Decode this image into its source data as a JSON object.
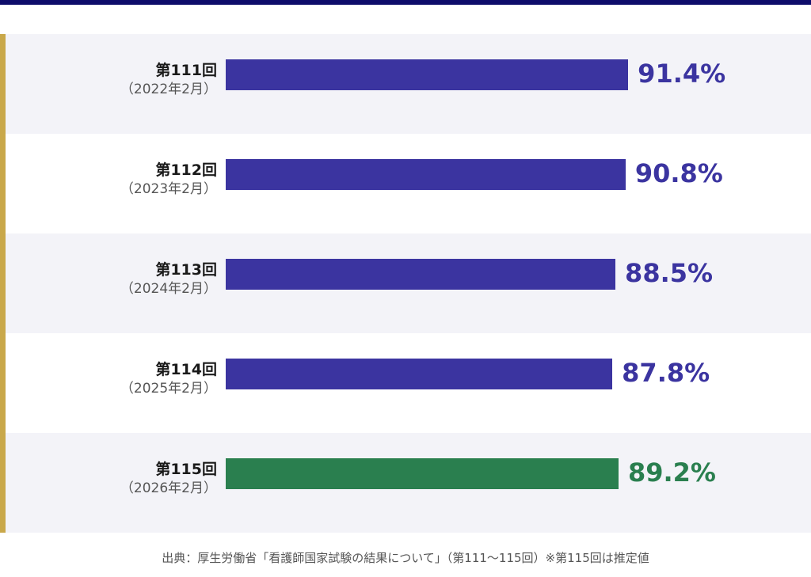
{
  "chart_data": {
    "type": "bar",
    "orientation": "horizontal",
    "categories": [
      {
        "label": "第111回",
        "sublabel": "（2022年2月）"
      },
      {
        "label": "第112回",
        "sublabel": "（2023年2月）"
      },
      {
        "label": "第113回",
        "sublabel": "（2024年2月）"
      },
      {
        "label": "第114回",
        "sublabel": "（2025年2月）"
      },
      {
        "label": "第115回",
        "sublabel": "（2026年2月）"
      }
    ],
    "values": [
      91.4,
      90.8,
      88.5,
      87.8,
      89.2
    ],
    "value_labels": [
      "91.4%",
      "90.8%",
      "88.5%",
      "87.8%",
      "89.2%"
    ],
    "bar_colors": [
      "#3b34a0",
      "#3b34a0",
      "#3b34a0",
      "#3b34a0",
      "#2a7f4f"
    ],
    "label_colors": [
      "#3b34a0",
      "#3b34a0",
      "#3b34a0",
      "#3b34a0",
      "#2a7f4f"
    ],
    "row_backgrounds": [
      "#f3f3f8",
      "#ffffff",
      "#f3f3f8",
      "#ffffff",
      "#f3f3f8"
    ],
    "xlim": [
      0,
      100
    ],
    "grid": false,
    "legend": "none"
  },
  "colors": {
    "top_bar": "#0e0c6b",
    "left_rule": "#c9a84a",
    "primary_bar": "#3b34a0",
    "highlight_bar": "#2a7f4f"
  },
  "source": "出典：厚生労働省「看護師国家試験の結果について」（第111〜115回）※第115回は推定値"
}
